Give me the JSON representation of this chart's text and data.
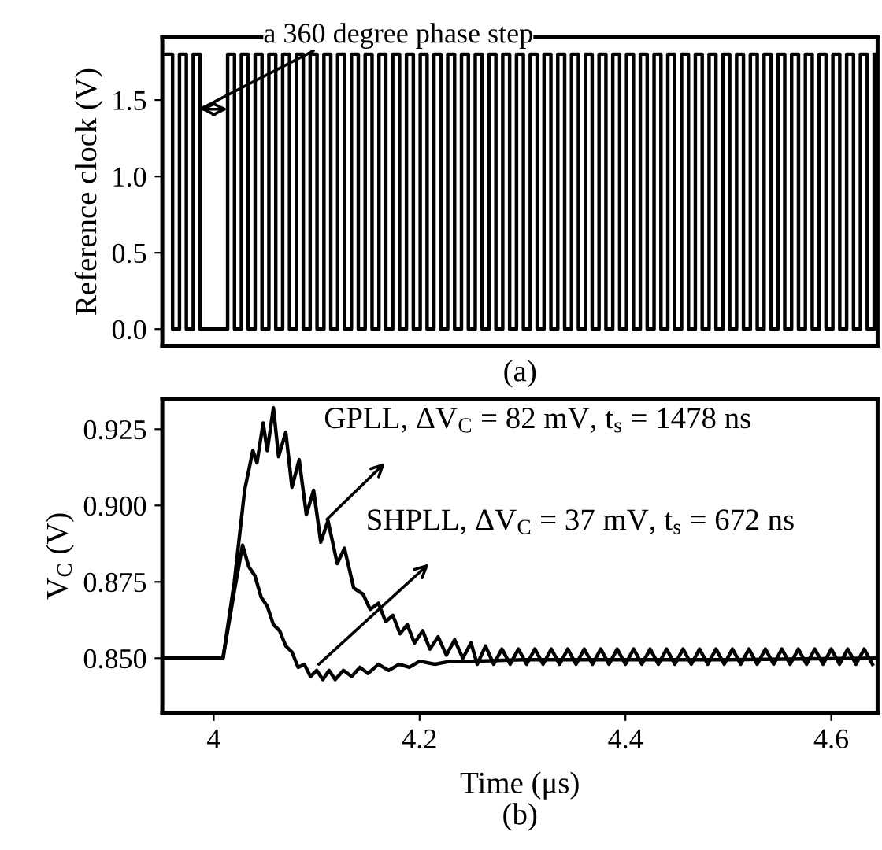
{
  "chart_data": [
    {
      "type": "step",
      "ylabel": "Reference clock (V)",
      "annotations": [
        "a 360 degree phase step",
        "(a)"
      ],
      "categories": [
        null,
        null,
        null,
        null,
        null,
        null,
        null,
        null,
        null,
        null,
        null,
        null,
        null,
        null,
        null,
        null,
        null,
        null,
        null,
        null,
        null,
        null,
        null,
        null,
        null,
        null,
        null,
        null,
        null,
        null,
        null,
        null,
        null,
        null,
        null,
        null,
        null,
        null,
        null,
        null,
        null,
        null,
        null,
        null,
        null,
        null,
        null,
        null,
        null,
        null,
        null,
        null,
        null,
        null,
        null,
        null,
        null,
        null,
        null,
        null,
        null,
        null,
        null,
        null,
        null,
        null,
        null,
        null,
        null,
        null,
        null,
        null,
        null,
        null,
        null,
        null,
        null,
        null,
        null,
        null,
        null,
        null,
        null,
        null,
        null,
        null,
        null,
        null,
        null,
        null,
        null,
        null,
        null,
        null,
        null,
        null,
        null,
        null,
        null,
        null,
        null,
        null,
        null,
        null
      ],
      "series": [
        {
          "color": "#000000",
          "values": [
            1.8,
            0,
            1.8,
            0,
            1.8,
            0,
            0,
            0,
            0,
            1.8,
            0,
            1.8,
            0,
            1.8,
            0,
            1.8,
            0,
            1.8,
            0,
            1.8,
            0,
            1.8,
            0,
            1.8,
            0,
            1.8,
            0,
            1.8,
            0,
            1.8,
            0,
            1.8,
            0,
            1.8,
            0,
            1.8,
            0,
            1.8,
            0,
            1.8,
            0,
            1.8,
            0,
            1.8,
            0,
            1.8,
            0,
            1.8,
            0,
            1.8,
            0,
            1.8,
            0,
            1.8,
            0,
            1.8,
            0,
            1.8,
            0,
            1.8,
            0,
            1.8,
            0,
            1.8,
            0,
            1.8,
            0,
            1.8,
            0,
            1.8,
            0,
            1.8,
            0,
            1.8,
            0,
            1.8,
            0,
            1.8,
            0,
            1.8,
            0,
            1.8,
            0,
            1.8,
            0,
            1.8,
            0,
            1.8,
            0,
            1.8,
            0,
            1.8,
            0,
            1.8,
            0,
            1.8,
            0,
            1.8,
            0,
            1.8,
            0,
            1.8,
            0,
            1.8
          ]
        }
      ],
      "ylim": [
        -0.11,
        1.91
      ],
      "yticks": [
        {
          "value": 0,
          "label": "0.0"
        },
        {
          "value": 0.5,
          "label": "0.5"
        },
        {
          "value": 1,
          "label": "1.0"
        },
        1.5
      ],
      "tick_labels": "y",
      "grid": false,
      "legend": false
    },
    {
      "type": "line",
      "xlabel": "Time (μs)",
      "ylabel": "V$_{C}$ (V)",
      "annotations": [
        {
          "text": "GPLL, ΔV$_{C}$ = 82 mV, t$_{s}$ = 1478 ns",
          "x": 4.11,
          "y": 0.8955
        },
        {
          "text": "SHPLL, ΔV$_{C}$ = 37 mV, t$_{s}$ = 672 ns",
          "x": 4.102,
          "y": 0.848
        },
        "(b)"
      ],
      "series": [
        {
          "color": "#000000",
          "x": [
            3.95,
            4.009,
            4.02,
            4.03,
            4.038,
            4.042,
            4.048,
            4.052,
            4.058,
            4.063,
            4.07,
            4.076,
            4.083,
            4.09,
            4.097,
            4.104,
            4.111,
            4.12,
            4.127,
            4.136,
            4.145,
            4.152,
            4.16,
            4.167,
            4.174,
            4.181,
            4.188,
            4.195,
            4.203,
            4.21,
            4.218,
            4.226,
            4.234,
            4.242,
            4.25,
            4.256,
            4.264,
            4.272,
            4.28,
            4.288,
            4.296,
            4.304,
            4.312,
            4.32,
            4.328,
            4.336,
            4.344,
            4.352,
            4.36,
            4.368,
            4.376,
            4.384,
            4.392,
            4.4,
            4.408,
            4.416,
            4.424,
            4.432,
            4.44,
            4.448,
            4.456,
            4.464,
            4.472,
            4.48,
            4.488,
            4.496,
            4.504,
            4.512,
            4.52,
            4.528,
            4.536,
            4.544,
            4.552,
            4.56,
            4.568,
            4.576,
            4.584,
            4.592,
            4.6,
            4.608,
            4.616,
            4.624,
            4.632,
            4.64
          ],
          "values": [
            0.85,
            0.85,
            0.875,
            0.905,
            0.918,
            0.914,
            0.927,
            0.918,
            0.932,
            0.916,
            0.924,
            0.906,
            0.915,
            0.897,
            0.905,
            0.888,
            0.895,
            0.881,
            0.886,
            0.873,
            0.871,
            0.866,
            0.868,
            0.862,
            0.864,
            0.858,
            0.861,
            0.855,
            0.859,
            0.853,
            0.857,
            0.851,
            0.856,
            0.85,
            0.855,
            0.848,
            0.854,
            0.848,
            0.853,
            0.848,
            0.853,
            0.848,
            0.853,
            0.848,
            0.853,
            0.848,
            0.853,
            0.848,
            0.853,
            0.848,
            0.853,
            0.848,
            0.853,
            0.848,
            0.853,
            0.848,
            0.853,
            0.848,
            0.853,
            0.848,
            0.853,
            0.848,
            0.853,
            0.848,
            0.853,
            0.848,
            0.853,
            0.848,
            0.853,
            0.848,
            0.853,
            0.848,
            0.853,
            0.848,
            0.853,
            0.848,
            0.853,
            0.848,
            0.853,
            0.848,
            0.853,
            0.848,
            0.853,
            0.848
          ]
        },
        {
          "color": "#000000",
          "x": [
            3.95,
            4.009,
            4.02,
            4.028,
            4.034,
            4.04,
            4.046,
            4.052,
            4.058,
            4.064,
            4.07,
            4.076,
            4.082,
            4.088,
            4.094,
            4.1,
            4.106,
            4.112,
            4.118,
            4.126,
            4.134,
            4.142,
            4.15,
            4.16,
            4.17,
            4.18,
            4.19,
            4.2,
            4.215,
            4.23,
            4.25,
            4.3,
            4.4,
            4.5,
            4.645
          ],
          "values": [
            0.85,
            0.85,
            0.872,
            0.887,
            0.88,
            0.877,
            0.87,
            0.867,
            0.861,
            0.859,
            0.854,
            0.852,
            0.847,
            0.848,
            0.844,
            0.846,
            0.843,
            0.846,
            0.843,
            0.846,
            0.844,
            0.847,
            0.845,
            0.848,
            0.846,
            0.848,
            0.847,
            0.849,
            0.848,
            0.849,
            0.849,
            0.8495,
            0.8495,
            0.8495,
            0.85
          ]
        }
      ],
      "xlim": [
        3.95,
        4.645
      ],
      "xticks": [
        4,
        4.2,
        4.4,
        4.6
      ],
      "ylim": [
        0.832,
        0.935
      ],
      "yticks": [
        {
          "value": 0.85,
          "label": "0.850"
        },
        0.875,
        {
          "value": 0.9,
          "label": "0.900"
        },
        0.925
      ],
      "grid": false,
      "legend": false
    }
  ]
}
